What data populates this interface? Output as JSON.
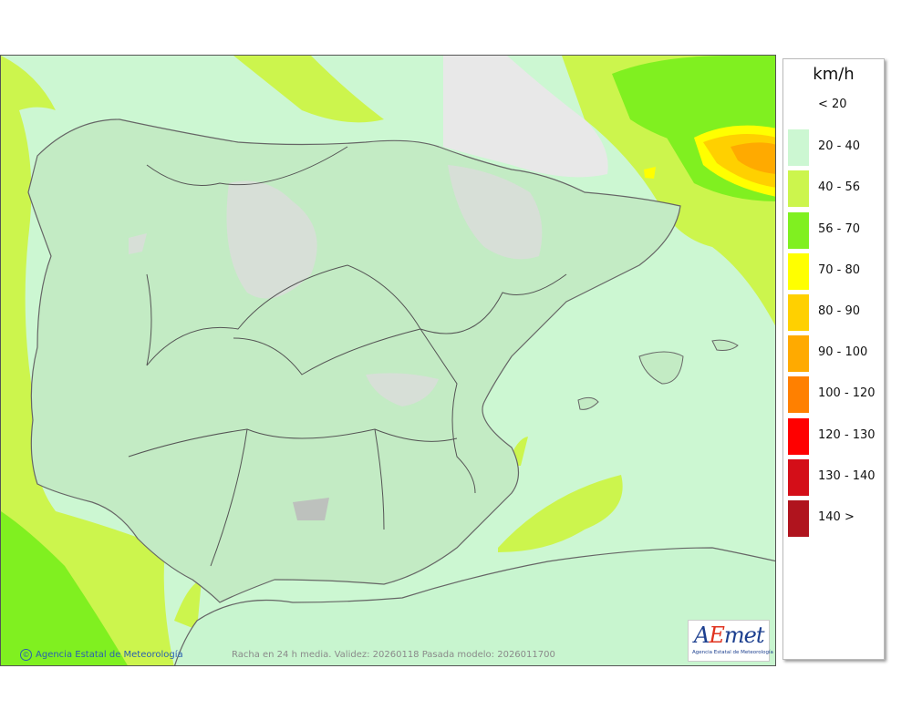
{
  "map": {
    "copyright": "Agencia Estatal de Meteorología",
    "caption": "Racha en 24 h media. Validez: 20260118 Pasada modelo: 2026011700",
    "logo_text": "Agencia Estatal de Meteorología",
    "logo_letters": {
      "a": "A",
      "e": "E",
      "rest": "met"
    }
  },
  "legend": {
    "unit": "km/h",
    "classes": [
      {
        "label": "< 20",
        "color": "#ffffff"
      },
      {
        "label": "20 - 40",
        "color": "#ccf7d2"
      },
      {
        "label": "40 - 56",
        "color": "#ccf54d"
      },
      {
        "label": "56 - 70",
        "color": "#80f020"
      },
      {
        "label": "70 - 80",
        "color": "#ffff00"
      },
      {
        "label": "80 - 90",
        "color": "#ffd000"
      },
      {
        "label": "90 - 100",
        "color": "#ffaa00"
      },
      {
        "label": "100 - 120",
        "color": "#ff8000"
      },
      {
        "label": "120 - 130",
        "color": "#ff0000"
      },
      {
        "label": "130 - 140",
        "color": "#d40e18"
      },
      {
        "label": "140 >",
        "color": "#b0141e"
      }
    ]
  }
}
